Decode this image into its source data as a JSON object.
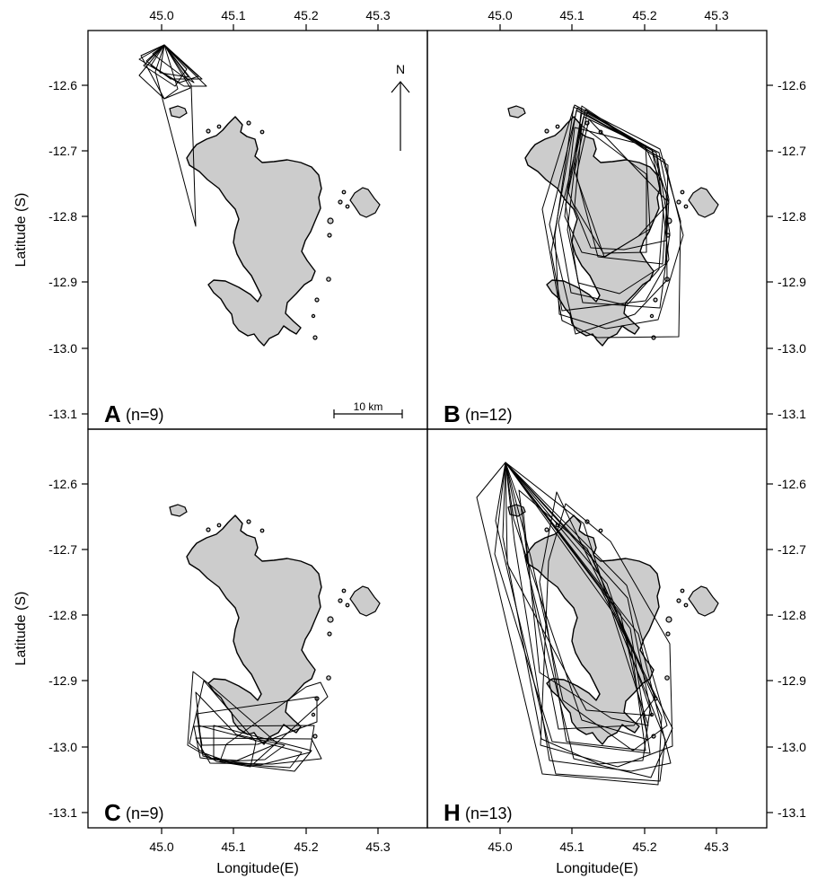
{
  "chart_data": {
    "type": "map",
    "x_ticks": [
      "45.0",
      "45.1",
      "45.2",
      "45.3"
    ],
    "y_ticks": [
      "-12.6",
      "-12.7",
      "-12.8",
      "-12.9",
      "-13.0",
      "-13.1"
    ],
    "xlabel": "Longitude(E)",
    "ylabel": "Latitude (S)",
    "xlim": [
      44.93,
      45.38
    ],
    "ylim": [
      -13.12,
      -12.53
    ],
    "north_label": "N",
    "scale_bar_label": "10 km",
    "panels": [
      {
        "letter": "A",
        "n_label": "(n=9)",
        "n": 9
      },
      {
        "letter": "B",
        "n_label": "(n=12)",
        "n": 12
      },
      {
        "letter": "C",
        "n_label": "(n=9)",
        "n": 9
      },
      {
        "letter": "H",
        "n_label": "(n=13)",
        "n": 13
      }
    ]
  }
}
